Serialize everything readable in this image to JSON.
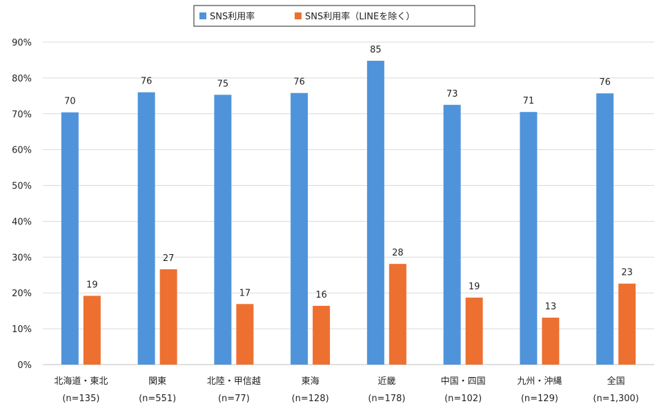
{
  "chart_data": {
    "type": "bar",
    "title": "",
    "xlabel": "",
    "ylabel": "",
    "ylim": [
      0,
      90
    ],
    "yticks": [
      0,
      10,
      20,
      30,
      40,
      50,
      60,
      70,
      80,
      90
    ],
    "ytick_suffix": "%",
    "grid": true,
    "legend_placement": "top-center",
    "categories": [
      {
        "name": "北海道・東北",
        "n": "(n=135)"
      },
      {
        "name": "関東",
        "n": "(n=551)"
      },
      {
        "name": "北陸・甲信越",
        "n": "(n=77)"
      },
      {
        "name": "東海",
        "n": "(n=128)"
      },
      {
        "name": "近畿",
        "n": "(n=178)"
      },
      {
        "name": "中国・四国",
        "n": "(n=102)"
      },
      {
        "name": "九州・沖縄",
        "n": "(n=129)"
      },
      {
        "name": "全国",
        "n": "(n=1,300)"
      }
    ],
    "series": [
      {
        "name": "SNS利用率",
        "color": "#4F94DA",
        "values": [
          70.4,
          76.0,
          75.3,
          75.8,
          84.8,
          72.5,
          70.5,
          75.7
        ],
        "labels": [
          "70",
          "76",
          "75",
          "76",
          "85",
          "73",
          "71",
          "76"
        ]
      },
      {
        "name": "SNS利用率（LINEを除く）",
        "color": "#ED7031",
        "values": [
          19.2,
          26.6,
          16.9,
          16.4,
          28.1,
          18.7,
          13.1,
          22.6
        ],
        "labels": [
          "19",
          "27",
          "17",
          "16",
          "28",
          "19",
          "13",
          "23"
        ]
      }
    ]
  }
}
